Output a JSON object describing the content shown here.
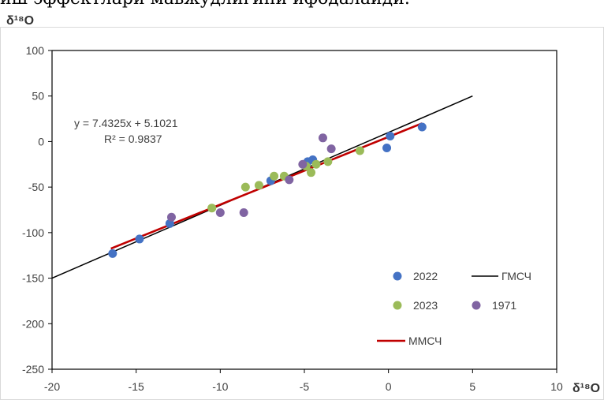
{
  "top_text": "иш эффектлари мавжудлигини ифодалайди.",
  "chart_data": {
    "type": "scatter",
    "ylabel": "δ¹⁸O",
    "xlabel": "δ¹⁸O",
    "xlim": [
      -20,
      10
    ],
    "ylim": [
      -250,
      100
    ],
    "x_ticks": [
      -20,
      -15,
      -10,
      -5,
      0,
      5,
      10
    ],
    "y_ticks": [
      100,
      50,
      0,
      -50,
      -100,
      -150,
      -200,
      -250
    ],
    "grid": false,
    "legend_placement": "bottom-right",
    "annotation": {
      "equation": "y = 7.4325x + 5.1021",
      "r2": "R² = 0.9837"
    },
    "series": [
      {
        "name": "2022",
        "color": "#4472C4",
        "points": [
          [
            -16.4,
            -123
          ],
          [
            -14.8,
            -107
          ],
          [
            -13.0,
            -90
          ],
          [
            -7.0,
            -43
          ],
          [
            -4.8,
            -22
          ],
          [
            -4.5,
            -20
          ],
          [
            -0.1,
            -7
          ],
          [
            0.1,
            6
          ],
          [
            2.0,
            16
          ]
        ]
      },
      {
        "name": "2023",
        "color": "#9BBB59",
        "points": [
          [
            -10.5,
            -73
          ],
          [
            -8.5,
            -50
          ],
          [
            -7.7,
            -48
          ],
          [
            -6.8,
            -38
          ],
          [
            -6.2,
            -38
          ],
          [
            -4.9,
            -27
          ],
          [
            -4.6,
            -34
          ],
          [
            -4.3,
            -25
          ],
          [
            -3.6,
            -22
          ],
          [
            -1.7,
            -10
          ]
        ]
      },
      {
        "name": "1971",
        "color": "#8064A2",
        "points": [
          [
            -12.9,
            -83
          ],
          [
            -10.0,
            -78
          ],
          [
            -8.6,
            -78
          ],
          [
            -5.9,
            -42
          ],
          [
            -5.1,
            -25
          ],
          [
            -3.9,
            4
          ],
          [
            -3.4,
            -8
          ]
        ]
      },
      {
        "name": "ГМСЧ",
        "type": "line",
        "color": "#000000",
        "x": [
          -20,
          5
        ],
        "y": [
          -150,
          50
        ]
      },
      {
        "name": "ММСЧ",
        "type": "line",
        "color": "#C00000",
        "x": [
          -16.5,
          2
        ],
        "y": [
          -117.5,
          20
        ]
      }
    ],
    "legend": [
      {
        "label": "2022",
        "kind": "marker",
        "color": "#4472C4"
      },
      {
        "label": "ГМСЧ",
        "kind": "line",
        "color": "#000000"
      },
      {
        "label": "2023",
        "kind": "marker",
        "color": "#9BBB59"
      },
      {
        "label": "1971",
        "kind": "marker",
        "color": "#8064A2"
      },
      {
        "label": "ММСЧ",
        "kind": "line",
        "color": "#C00000"
      }
    ]
  }
}
